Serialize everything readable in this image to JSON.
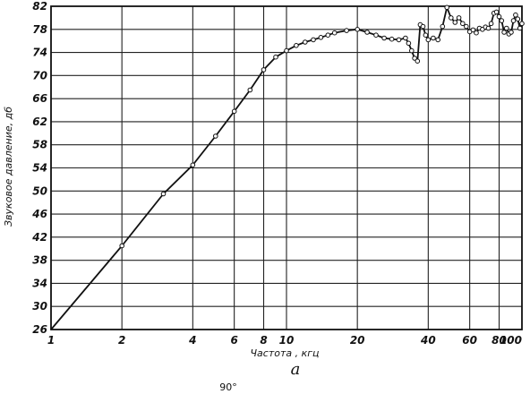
{
  "chart_data": {
    "type": "line",
    "title": "",
    "xlabel": "Частота , кгц",
    "ylabel": "Звуковое давление, дб",
    "panel_label": "а",
    "caption": "90°",
    "x_scale": "log",
    "xlim": [
      1,
      100
    ],
    "ylim": [
      26,
      82
    ],
    "x_ticks": [
      {
        "value": 1,
        "label": "1"
      },
      {
        "value": 2,
        "label": "2"
      },
      {
        "value": 4,
        "label": "4"
      },
      {
        "value": 6,
        "label": "6"
      },
      {
        "value": 8,
        "label": "8"
      },
      {
        "value": 10,
        "label": "10"
      },
      {
        "value": 20,
        "label": "20"
      },
      {
        "value": 40,
        "label": "40"
      },
      {
        "value": 60,
        "label": "60"
      },
      {
        "value": 80,
        "label": "80"
      },
      {
        "value": 100,
        "label": "100"
      }
    ],
    "y_ticks": [
      {
        "value": 26,
        "label": "26"
      },
      {
        "value": 30,
        "label": "30"
      },
      {
        "value": 34,
        "label": "34"
      },
      {
        "value": 38,
        "label": "38"
      },
      {
        "value": 42,
        "label": "42"
      },
      {
        "value": 46,
        "label": "46"
      },
      {
        "value": 50,
        "label": "50"
      },
      {
        "value": 54,
        "label": "54"
      },
      {
        "value": 58,
        "label": "58"
      },
      {
        "value": 62,
        "label": "62"
      },
      {
        "value": 66,
        "label": "66"
      },
      {
        "value": 70,
        "label": "70"
      },
      {
        "value": 74,
        "label": "74"
      },
      {
        "value": 78,
        "label": "78"
      },
      {
        "value": 82,
        "label": "82"
      }
    ],
    "grid": true,
    "series": [
      {
        "points": [
          [
            1,
            26
          ],
          [
            2,
            40.5
          ],
          [
            3,
            49.5
          ],
          [
            4,
            54.5
          ],
          [
            5,
            59.5
          ],
          [
            6,
            63.8
          ],
          [
            7,
            67.5
          ],
          [
            8,
            71
          ],
          [
            9,
            73.2
          ],
          [
            10,
            74.3
          ],
          [
            11,
            75.2
          ],
          [
            12,
            75.8
          ],
          [
            13,
            76.2
          ],
          [
            14,
            76.6
          ],
          [
            15,
            77
          ],
          [
            16,
            77.4
          ],
          [
            18,
            77.8
          ],
          [
            20,
            78
          ],
          [
            22,
            77.5
          ],
          [
            24,
            77
          ],
          [
            26,
            76.5
          ],
          [
            28,
            76.3
          ],
          [
            30,
            76.2
          ],
          [
            32,
            76.5
          ],
          [
            33,
            75.6
          ],
          [
            34,
            74.3
          ],
          [
            35,
            73
          ],
          [
            36,
            72.5
          ],
          [
            37,
            78.8
          ],
          [
            38,
            78.5
          ],
          [
            39,
            77
          ],
          [
            40,
            76.2
          ],
          [
            42,
            76.5
          ],
          [
            44,
            76.2
          ],
          [
            46,
            78.5
          ],
          [
            48,
            81.8
          ],
          [
            50,
            80
          ],
          [
            52,
            79.2
          ],
          [
            54,
            80
          ],
          [
            56,
            79
          ],
          [
            58,
            78.5
          ],
          [
            60,
            77.6
          ],
          [
            62,
            77.9
          ],
          [
            64,
            77.4
          ],
          [
            66,
            78.2
          ],
          [
            68,
            78
          ],
          [
            70,
            78.4
          ],
          [
            72,
            78.2
          ],
          [
            74,
            79
          ],
          [
            76,
            80.8
          ],
          [
            78,
            81
          ],
          [
            80,
            80.2
          ],
          [
            82,
            79.5
          ],
          [
            84,
            77.5
          ],
          [
            86,
            78.2
          ],
          [
            88,
            77.2
          ],
          [
            90,
            77.5
          ],
          [
            92,
            79.5
          ],
          [
            94,
            80.5
          ],
          [
            96,
            79.8
          ],
          [
            98,
            78.2
          ],
          [
            100,
            79
          ]
        ]
      }
    ]
  }
}
